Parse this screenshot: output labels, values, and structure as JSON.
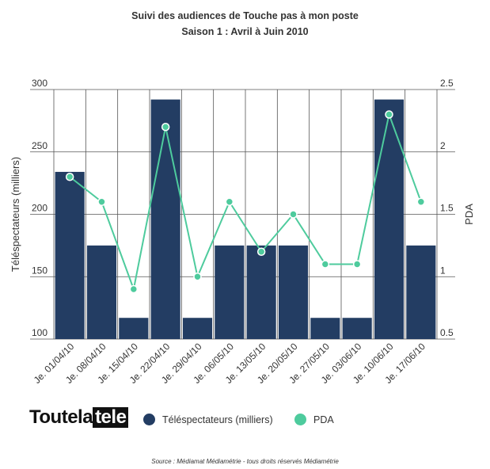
{
  "title": "Suivi des audiences de Touche pas à mon poste",
  "subtitle": "Saison 1 : Avril à Juin 2010",
  "logo": {
    "part1": "Toutela",
    "part2": "tele"
  },
  "source": "Source : Médiamat Médiamétrie - tous droits réservés Médiamétrie",
  "colors": {
    "bars": "#233d63",
    "line": "#4ecb9d",
    "grid": "#555555"
  },
  "chart_data": {
    "type": "bar",
    "categories": [
      "Je. 01/04/10",
      "Je. 08/04/10",
      "Je. 15/04/10",
      "Je. 22/04/10",
      "Je. 29/04/10",
      "Je. 06/05/10",
      "Je. 13/05/10",
      "Je. 20/05/10",
      "Je. 27/05/10",
      "Je. 03/06/10",
      "Je. 10/06/10",
      "Je. 17/06/10"
    ],
    "ylabel": "Téléspectateurs (milliers)",
    "ylim": [
      100,
      300
    ],
    "yticks": [
      100,
      150,
      200,
      250,
      300
    ],
    "y2label": "PDA",
    "y2lim": [
      0.5,
      2.5
    ],
    "y2ticks": [
      "0.5",
      "1",
      "1.5",
      "2",
      "2.5"
    ],
    "grid": true,
    "legend_position": "bottom",
    "series": [
      {
        "name": "Téléspectateurs (milliers)",
        "type": "bar",
        "axis": "left",
        "values": [
          234,
          175,
          117,
          292,
          117,
          175,
          175,
          175,
          117,
          117,
          292,
          175
        ]
      },
      {
        "name": "PDA",
        "type": "line",
        "axis": "right",
        "values": [
          1.8,
          1.6,
          0.9,
          2.2,
          1.0,
          1.6,
          1.2,
          1.5,
          1.1,
          1.1,
          2.3,
          1.6
        ]
      }
    ]
  }
}
